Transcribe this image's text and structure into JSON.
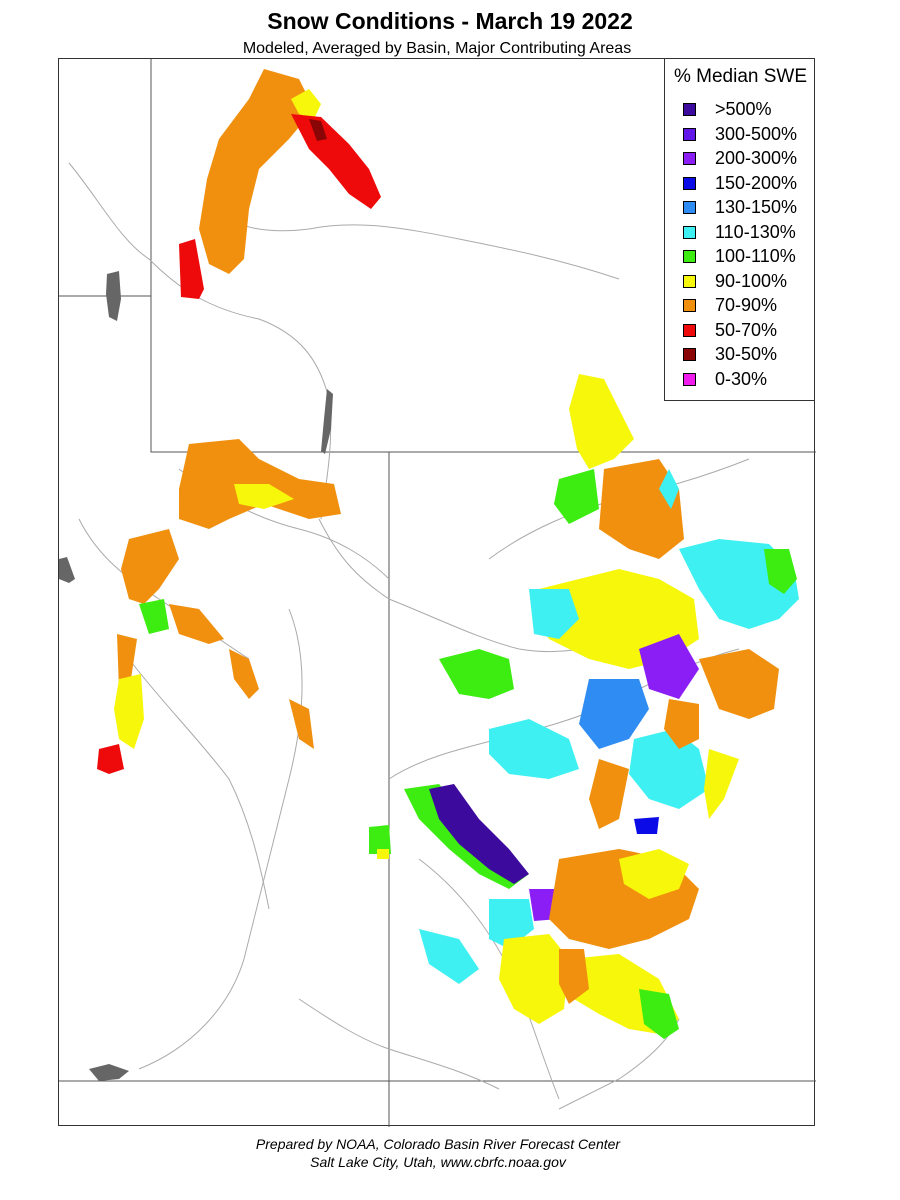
{
  "header": {
    "title": "Snow Conditions - March 19 2022",
    "subtitle": "Modeled, Averaged by Basin, Major Contributing Areas"
  },
  "legend": {
    "title": "% Median SWE",
    "items": [
      {
        "label": ">500%",
        "color": "#3d0a9e"
      },
      {
        "label": "300-500%",
        "color": "#6316e8"
      },
      {
        "label": "200-300%",
        "color": "#8a1ef5"
      },
      {
        "label": "150-200%",
        "color": "#0b0be8"
      },
      {
        "label": "130-150%",
        "color": "#2f8cf2"
      },
      {
        "label": "110-130%",
        "color": "#3ef0f2"
      },
      {
        "label": "100-110%",
        "color": "#3ded12"
      },
      {
        "label": "90-100%",
        "color": "#f7f70c"
      },
      {
        "label": "70-90%",
        "color": "#f0900e"
      },
      {
        "label": "50-70%",
        "color": "#ee0a0a"
      },
      {
        "label": "30-50%",
        "color": "#8a0505"
      },
      {
        "label": "0-30%",
        "color": "#f01cee"
      }
    ]
  },
  "colors": {
    "state_border": "#555555",
    "rivers": "#aaaaaa",
    "lakes": "#666666"
  },
  "footer": {
    "line1": "Prepared by NOAA, Colorado Basin River Forecast Center",
    "line2": "Salt Lake City, Utah, www.cbrfc.noaa.gov"
  }
}
